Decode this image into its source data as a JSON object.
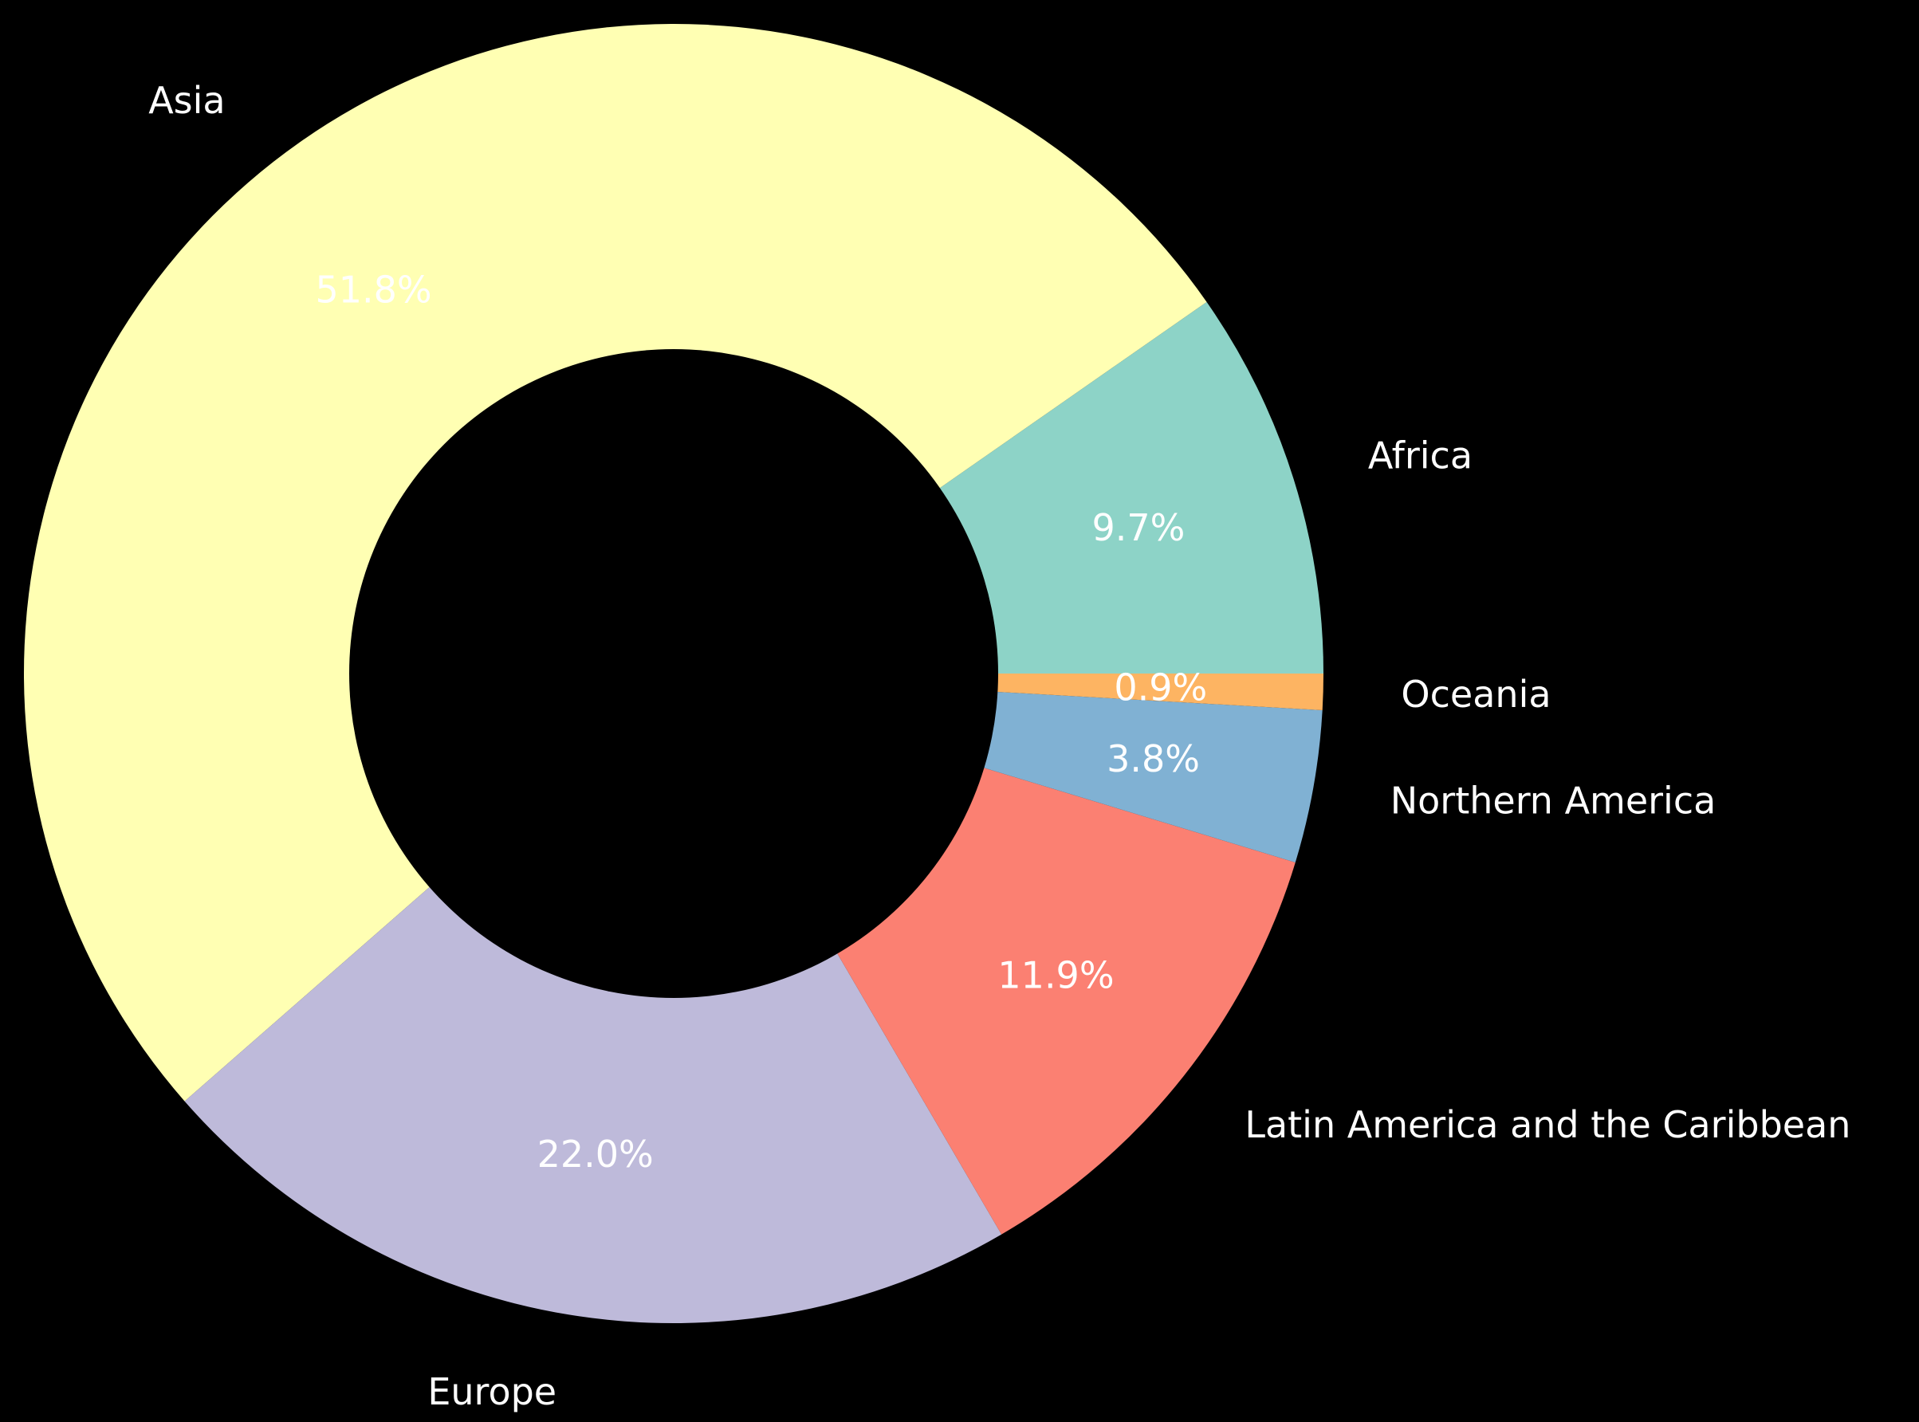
{
  "chart_data": {
    "type": "pie",
    "style": "donut",
    "start_angle_deg": 0,
    "direction": "counterclockwise",
    "background": "#000000",
    "slices": [
      {
        "label": "Africa",
        "value": 9.7,
        "pct_label": "9.7%",
        "color": "#8dd3c7"
      },
      {
        "label": "Asia",
        "value": 51.8,
        "pct_label": "51.8%",
        "color": "#ffffb3"
      },
      {
        "label": "Europe",
        "value": 22.0,
        "pct_label": "22.0%",
        "color": "#bebada"
      },
      {
        "label": "Latin America and the Caribbean",
        "value": 11.9,
        "pct_label": "11.9%",
        "color": "#fb8072"
      },
      {
        "label": "Northern America",
        "value": 3.8,
        "pct_label": "3.8%",
        "color": "#80b1d3"
      },
      {
        "label": "Oceania",
        "value": 0.9,
        "pct_label": "0.9%",
        "color": "#fdb462"
      }
    ]
  }
}
